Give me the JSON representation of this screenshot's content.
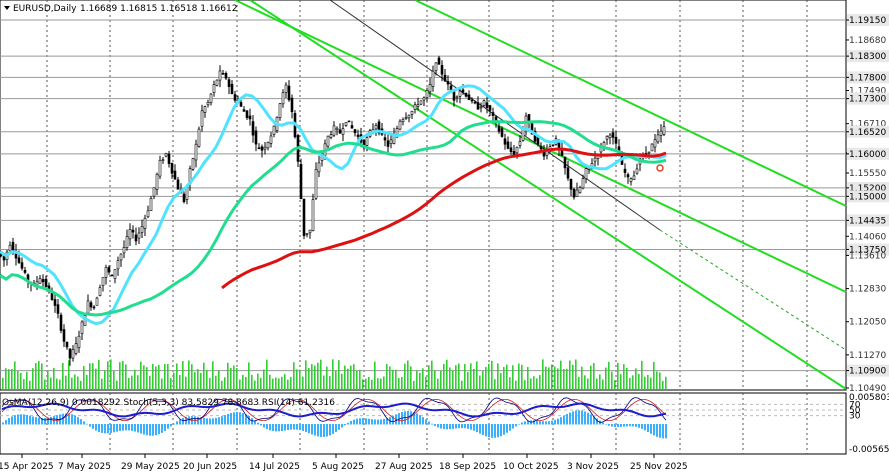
{
  "chart_data": {
    "type": "candlestick",
    "symbol_header": "EURUSD,Daily",
    "ohlc_header": "1.16689 1.16815 1.16518 1.16612",
    "price_axis": {
      "ticks": [
        "1.19150",
        "1.18680",
        "1.18300",
        "1.17800",
        "1.17490",
        "1.17300",
        "1.16710",
        "1.16520",
        "1.16020",
        "1.16000",
        "1.15550",
        "1.15200",
        "1.15000",
        "1.14435",
        "1.14060",
        "1.13750",
        "1.13610",
        "1.12830",
        "1.12050",
        "1.11270",
        "1.10900",
        "1.10490"
      ],
      "highlighted_levels": [
        {
          "label": "1.19150",
          "price": 1.1915
        },
        {
          "label": "1.18300",
          "price": 1.183
        },
        {
          "label": "1.17800",
          "price": 1.178
        },
        {
          "label": "1.17300",
          "price": 1.173
        },
        {
          "label": "1.16520",
          "price": 1.1652
        },
        {
          "label": "1.16000",
          "price": 1.16
        },
        {
          "label": "1.15200",
          "price": 1.152
        },
        {
          "label": "1.15000",
          "price": 1.15
        },
        {
          "label": "1.14435",
          "price": 1.14435
        },
        {
          "label": "1.13750",
          "price": 1.1375
        },
        {
          "label": "1.10900",
          "price": 1.109
        }
      ],
      "range": [
        1.1043,
        1.1948
      ]
    },
    "time_axis": [
      "15 Apr 2025",
      "7 May 2025",
      "29 May 2025",
      "20 Jun 2025",
      "14 Jul 2025",
      "5 Aug 2025",
      "27 Aug 2025",
      "18 Sep 2025",
      "10 Oct 2025",
      "3 Nov 2025",
      "25 Nov 2025"
    ],
    "close_path": [
      [
        0,
        1.137
      ],
      [
        6,
        1.135
      ],
      [
        12,
        1.139
      ],
      [
        18,
        1.136
      ],
      [
        24,
        1.133
      ],
      [
        30,
        1.13
      ],
      [
        36,
        1.129
      ],
      [
        42,
        1.131
      ],
      [
        48,
        1.129
      ],
      [
        54,
        1.126
      ],
      [
        60,
        1.122
      ],
      [
        66,
        1.116
      ],
      [
        72,
        1.112
      ],
      [
        78,
        1.115
      ],
      [
        84,
        1.12
      ],
      [
        90,
        1.125
      ],
      [
        96,
        1.124
      ],
      [
        102,
        1.129
      ],
      [
        108,
        1.133
      ],
      [
        114,
        1.131
      ],
      [
        120,
        1.135
      ],
      [
        126,
        1.138
      ],
      [
        132,
        1.142
      ],
      [
        138,
        1.14
      ],
      [
        144,
        1.143
      ],
      [
        150,
        1.147
      ],
      [
        156,
        1.152
      ],
      [
        162,
        1.158
      ],
      [
        168,
        1.16
      ],
      [
        174,
        1.156
      ],
      [
        180,
        1.152
      ],
      [
        186,
        1.149
      ],
      [
        192,
        1.156
      ],
      [
        198,
        1.162
      ],
      [
        204,
        1.17
      ],
      [
        210,
        1.172
      ],
      [
        216,
        1.176
      ],
      [
        222,
        1.179
      ],
      [
        228,
        1.178
      ],
      [
        234,
        1.174
      ],
      [
        240,
        1.172
      ],
      [
        246,
        1.17
      ],
      [
        252,
        1.168
      ],
      [
        258,
        1.162
      ],
      [
        264,
        1.161
      ],
      [
        270,
        1.163
      ],
      [
        276,
        1.166
      ],
      [
        282,
        1.172
      ],
      [
        288,
        1.176
      ],
      [
        294,
        1.17
      ],
      [
        300,
        1.158
      ],
      [
        306,
        1.141
      ],
      [
        312,
        1.142
      ],
      [
        318,
        1.156
      ],
      [
        324,
        1.16
      ],
      [
        330,
        1.164
      ],
      [
        336,
        1.166
      ],
      [
        342,
        1.165
      ],
      [
        348,
        1.168
      ],
      [
        354,
        1.166
      ],
      [
        360,
        1.164
      ],
      [
        366,
        1.162
      ],
      [
        372,
        1.165
      ],
      [
        378,
        1.167
      ],
      [
        384,
        1.164
      ],
      [
        390,
        1.162
      ],
      [
        396,
        1.164
      ],
      [
        402,
        1.168
      ],
      [
        408,
        1.169
      ],
      [
        414,
        1.17
      ],
      [
        420,
        1.172
      ],
      [
        426,
        1.173
      ],
      [
        432,
        1.176
      ],
      [
        438,
        1.182
      ],
      [
        444,
        1.179
      ],
      [
        450,
        1.176
      ],
      [
        456,
        1.173
      ],
      [
        462,
        1.175
      ],
      [
        468,
        1.174
      ],
      [
        474,
        1.172
      ],
      [
        480,
        1.171
      ],
      [
        486,
        1.172
      ],
      [
        492,
        1.17
      ],
      [
        498,
        1.167
      ],
      [
        504,
        1.164
      ],
      [
        510,
        1.161
      ],
      [
        516,
        1.16
      ],
      [
        522,
        1.163
      ],
      [
        528,
        1.169
      ],
      [
        534,
        1.165
      ],
      [
        540,
        1.162
      ],
      [
        546,
        1.16
      ],
      [
        552,
        1.162
      ],
      [
        558,
        1.163
      ],
      [
        564,
        1.159
      ],
      [
        570,
        1.154
      ],
      [
        576,
        1.15
      ],
      [
        582,
        1.152
      ],
      [
        588,
        1.156
      ],
      [
        594,
        1.158
      ],
      [
        600,
        1.16
      ],
      [
        606,
        1.163
      ],
      [
        612,
        1.165
      ],
      [
        618,
        1.162
      ],
      [
        624,
        1.157
      ],
      [
        630,
        1.154
      ],
      [
        636,
        1.155
      ],
      [
        642,
        1.159
      ],
      [
        648,
        1.16
      ],
      [
        654,
        1.162
      ],
      [
        660,
        1.164
      ],
      [
        666,
        1.1661
      ]
    ],
    "indicator_panel": {
      "header": "OsMA(12,26,9) 0.0018292  Stoch(5,3,3) 83.5829 78.8683  RSI(14) 61.2316",
      "axis_labels": [
        "0.0058035",
        "70",
        "50",
        "30",
        "-0.0056578"
      ]
    },
    "colors": {
      "ma_fast": "#4fe3ff",
      "ma_mid": "#22dd90",
      "ma_slow": "#dd1111",
      "channel": "#22dd22",
      "volume": "#33cc33",
      "osma": "#3ab0ff",
      "stoch_main": "#000080",
      "stoch_signal": "#cc2222",
      "rsi": "#1d1dcc"
    }
  }
}
